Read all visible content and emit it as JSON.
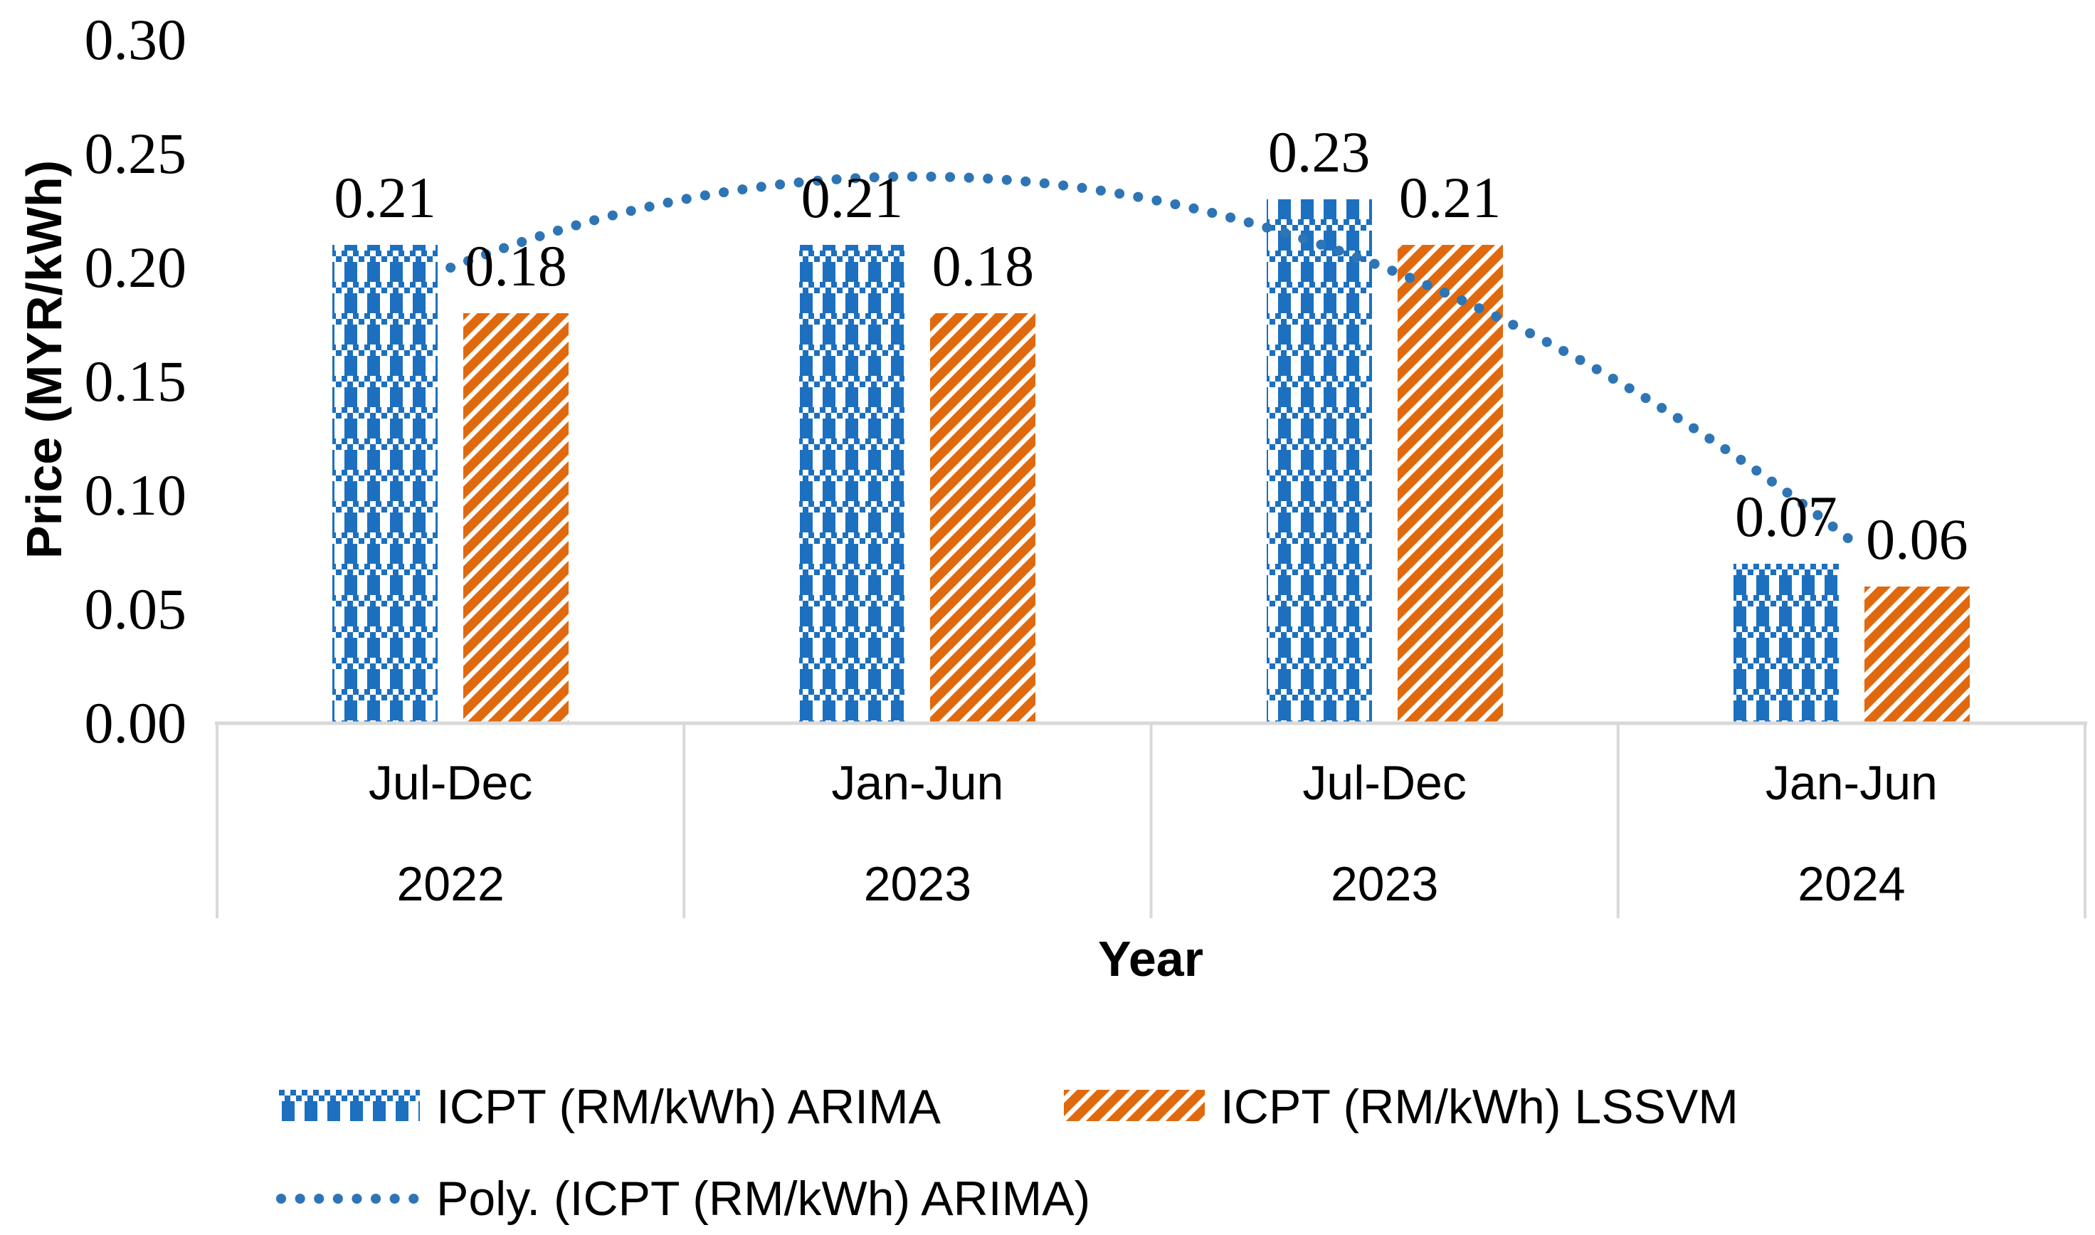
{
  "chart_data": {
    "type": "bar",
    "title": "",
    "xlabel": "Year",
    "ylabel": "Price (MYR/kWh)",
    "ylim": [
      0,
      0.3
    ],
    "ytick_step": 0.05,
    "ytick_decimals": 2,
    "grid": false,
    "legend_position": "bottom-left",
    "axis_line_color": "#D9D9D9",
    "categories": [
      {
        "period": "Jul-Dec",
        "year": "2022"
      },
      {
        "period": "Jan-Jun",
        "year": "2023"
      },
      {
        "period": "Jul-Dec",
        "year": "2023"
      },
      {
        "period": "Jan-Jun",
        "year": "2024"
      }
    ],
    "series": [
      {
        "name": "ICPT (RM/kWh) ARIMA",
        "values": [
          0.21,
          0.21,
          0.23,
          0.07
        ],
        "color": "#1C70BF",
        "pattern": "plaid-checker"
      },
      {
        "name": "ICPT (RM/kWh) LSSVM",
        "values": [
          0.18,
          0.18,
          0.21,
          0.06
        ],
        "color": "#E1690D",
        "pattern": "diagonal-stripes"
      }
    ],
    "trendline": {
      "name": "Poly. (ICPT (RM/kWh) ARIMA)",
      "type": "polynomial-order-2",
      "coefficients": {
        "a": -0.04,
        "b": 0.16,
        "c": 0.08
      },
      "values_at_categories": [
        0.2,
        0.24,
        0.2,
        0.08
      ],
      "color": "#2E75B6",
      "style": "dotted"
    }
  }
}
